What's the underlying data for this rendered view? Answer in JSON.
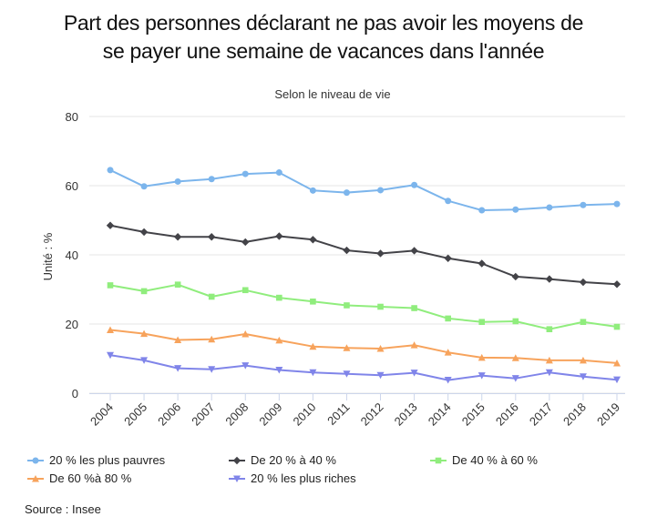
{
  "chart_data": {
    "type": "line",
    "title_lines": [
      "Part des personnes déclarant ne pas avoir les moyens de",
      "se payer une semaine de vacances dans l'année"
    ],
    "subtitle": "Selon le niveau de vie",
    "ylabel": "Unité : %",
    "xlabel": "",
    "ylim": [
      0,
      80
    ],
    "yticks": [
      0,
      20,
      40,
      60,
      80
    ],
    "grid": "horizontal",
    "legend_position": "bottom",
    "x": [
      "2004",
      "2005",
      "2006",
      "2007",
      "2008",
      "2009",
      "2010",
      "2011",
      "2012",
      "2013",
      "2014",
      "2015",
      "2016",
      "2017",
      "2018",
      "2019"
    ],
    "series": [
      {
        "name": "20 % les plus pauvres",
        "color": "#7cb5ec",
        "marker": "circle",
        "values": [
          64.5,
          59.8,
          61.2,
          61.9,
          63.4,
          63.8,
          58.6,
          58.0,
          58.7,
          60.2,
          55.6,
          52.9,
          53.1,
          53.7,
          54.4,
          54.7
        ]
      },
      {
        "name": "De 20 % à 40 %",
        "color": "#434348",
        "marker": "diamond",
        "values": [
          48.5,
          46.6,
          45.2,
          45.2,
          43.7,
          45.4,
          44.4,
          41.3,
          40.4,
          41.2,
          39.0,
          37.5,
          33.7,
          33.0,
          32.1,
          31.5
        ]
      },
      {
        "name": "De 40 % à 60 %",
        "color": "#90ed7d",
        "marker": "square",
        "values": [
          31.2,
          29.5,
          31.4,
          27.9,
          29.8,
          27.6,
          26.5,
          25.4,
          25.0,
          24.6,
          21.6,
          20.6,
          20.8,
          18.5,
          20.6,
          19.2
        ]
      },
      {
        "name": "De 60 %à 80 %",
        "color": "#f7a35c",
        "marker": "triangle",
        "values": [
          18.3,
          17.2,
          15.4,
          15.6,
          17.1,
          15.3,
          13.5,
          13.1,
          12.9,
          13.9,
          11.8,
          10.3,
          10.2,
          9.5,
          9.5,
          8.7
        ]
      },
      {
        "name": "20 % les plus riches",
        "color": "#8085e9",
        "marker": "triangle-down",
        "values": [
          11.0,
          9.5,
          7.2,
          6.9,
          8.0,
          6.7,
          6.0,
          5.6,
          5.2,
          5.9,
          3.8,
          5.1,
          4.3,
          6.0,
          4.8,
          3.9
        ]
      }
    ],
    "source": "Source : Insee"
  }
}
